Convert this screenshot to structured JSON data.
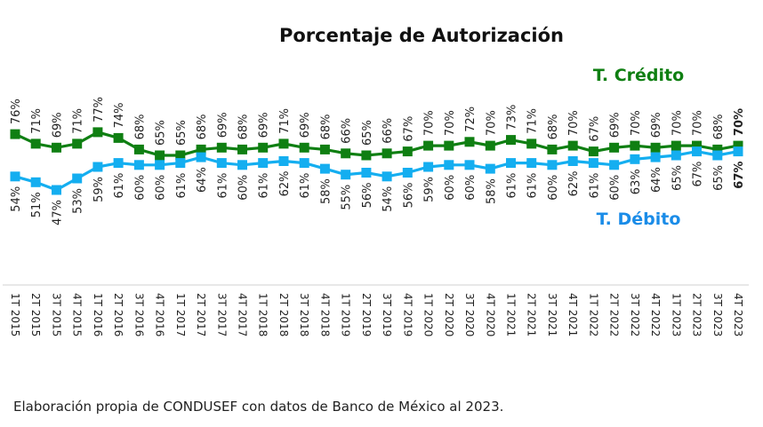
{
  "chart_data": {
    "type": "line",
    "title": "Porcentaje de Autorización",
    "xlabel": "",
    "ylabel": "",
    "ylim": [
      40,
      85
    ],
    "grid": false,
    "value_suffix": "%",
    "categories": [
      "1T 2015",
      "2T 2015",
      "3T 2015",
      "4T 2015",
      "1T 2016",
      "2T 2016",
      "3T 2016",
      "4T 2016",
      "1T 2017",
      "2T 2017",
      "3T 2017",
      "4T 2017",
      "1T 2018",
      "2T 2018",
      "3T 2018",
      "4T 2018",
      "1T 2019",
      "2T 2019",
      "3T 2019",
      "4T 2019",
      "1T 2020",
      "2T 2020",
      "3T 2020",
      "4T 2020",
      "1T 2021",
      "2T 2021",
      "3T 2021",
      "4T 2021",
      "1T 2022",
      "2T 2022",
      "3T 2022",
      "4T 2022",
      "1T 2023",
      "2T 2023",
      "3T 2023",
      "4T 2023"
    ],
    "series": [
      {
        "name": "T. Crédito",
        "color": "#0f7f12",
        "last_label_color": "#14a55a",
        "marker": "square",
        "label_position": "above",
        "values": [
          76,
          71,
          69,
          71,
          77,
          74,
          68,
          65,
          65,
          68,
          69,
          68,
          69,
          71,
          69,
          68,
          66,
          65,
          66,
          67,
          70,
          70,
          72,
          70,
          73,
          71,
          68,
          70,
          67,
          69,
          70,
          69,
          70,
          70,
          68,
          70
        ]
      },
      {
        "name": "T. Débito",
        "color": "#14aef0",
        "last_label_color": "#14aef0",
        "legend_color": "#1a8ce8",
        "marker": "square",
        "label_position": "below",
        "values": [
          54,
          51,
          47,
          53,
          59,
          61,
          60,
          60,
          61,
          64,
          61,
          60,
          61,
          62,
          61,
          58,
          55,
          56,
          54,
          56,
          59,
          60,
          60,
          58,
          61,
          61,
          60,
          62,
          61,
          60,
          63,
          64,
          65,
          67,
          65,
          67
        ]
      }
    ],
    "legend": [
      {
        "label": "T. Crédito",
        "placement": "top-right, above credit line"
      },
      {
        "label": "T. Débito",
        "placement": "right, below debit line"
      }
    ]
  },
  "footer": {
    "source_text": "Elaboración propia de CONDUSEF con datos de Banco de México al 2023."
  }
}
